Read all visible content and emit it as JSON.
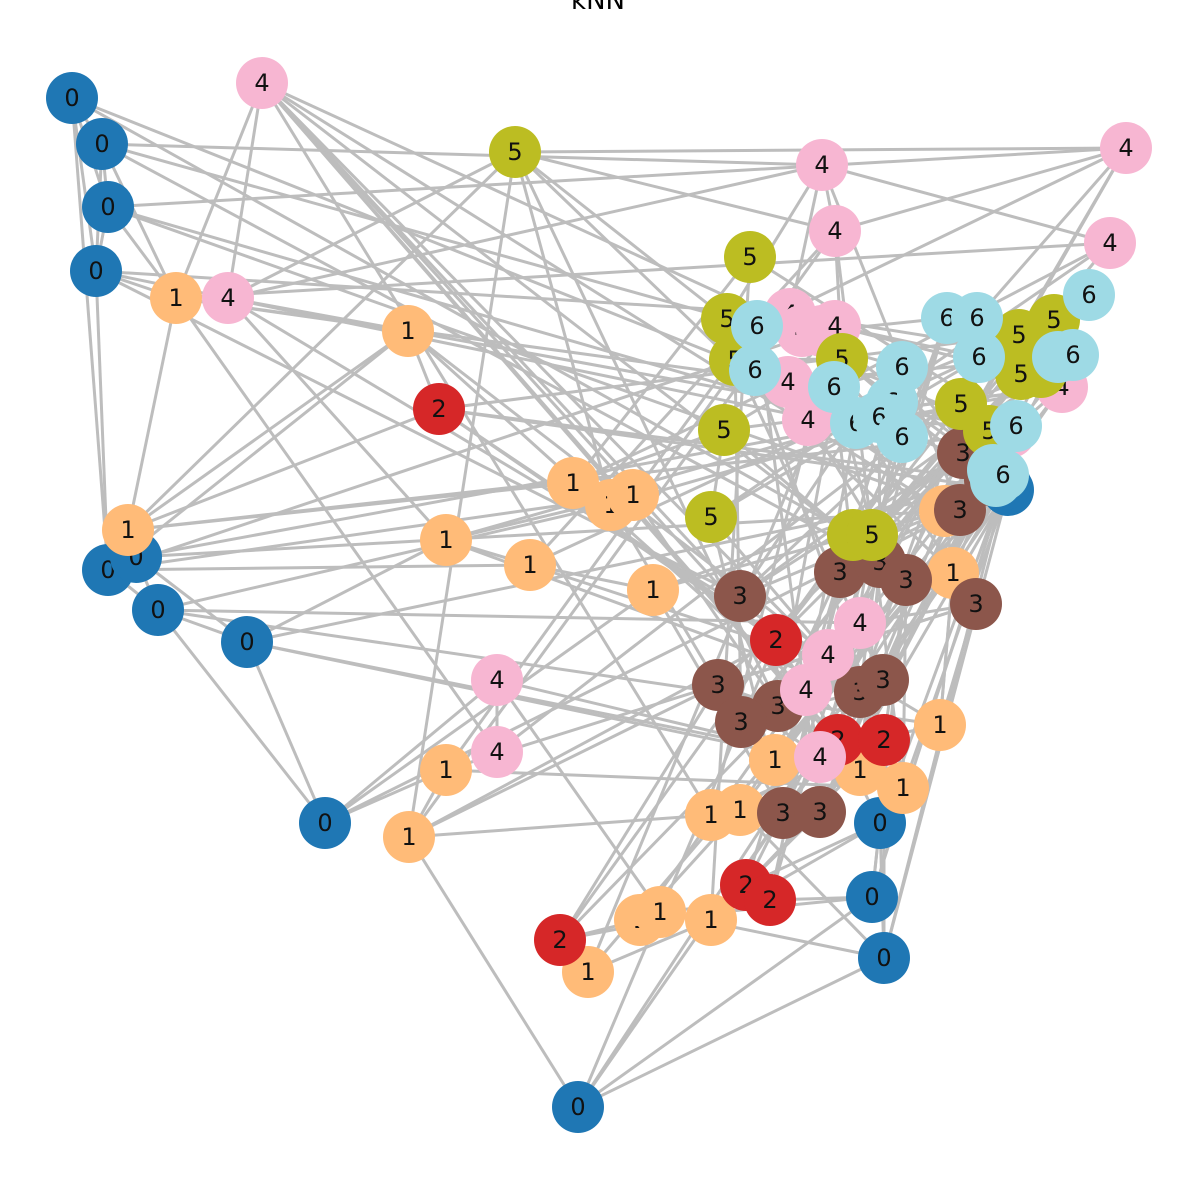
{
  "title": "kNN",
  "legend": [],
  "class_colors": {
    "0": "#1f77b4",
    "1": "#ffbb78",
    "2": "#d62728",
    "3": "#8c564b",
    "4": "#f7b6d2",
    "5": "#bcbd22",
    "6": "#9edae5"
  },
  "edge_color": "#bdbdbd",
  "nodes": [
    {
      "id": 0,
      "label": "0",
      "cls": 0
    },
    {
      "id": 1,
      "label": "0",
      "cls": 0
    },
    {
      "id": 2,
      "label": "0",
      "cls": 0
    },
    {
      "id": 3,
      "label": "0",
      "cls": 0
    },
    {
      "id": 4,
      "label": "0",
      "cls": 0
    },
    {
      "id": 5,
      "label": "0",
      "cls": 0
    },
    {
      "id": 6,
      "label": "0",
      "cls": 0
    },
    {
      "id": 7,
      "label": "0",
      "cls": 0
    },
    {
      "id": 8,
      "label": "0",
      "cls": 0
    },
    {
      "id": 9,
      "label": "0",
      "cls": 0
    },
    {
      "id": 10,
      "label": "0",
      "cls": 0
    },
    {
      "id": 11,
      "label": "0",
      "cls": 0
    },
    {
      "id": 12,
      "label": "0",
      "cls": 0
    },
    {
      "id": 13,
      "label": "0",
      "cls": 0
    },
    {
      "id": 14,
      "label": "0",
      "cls": 0
    },
    {
      "id": 15,
      "label": "1",
      "cls": 1
    },
    {
      "id": 16,
      "label": "1",
      "cls": 1
    },
    {
      "id": 17,
      "label": "1",
      "cls": 1
    },
    {
      "id": 18,
      "label": "1",
      "cls": 1
    },
    {
      "id": 19,
      "label": "1",
      "cls": 1
    },
    {
      "id": 20,
      "label": "1",
      "cls": 1
    },
    {
      "id": 21,
      "label": "1",
      "cls": 1
    },
    {
      "id": 22,
      "label": "1",
      "cls": 1
    },
    {
      "id": 23,
      "label": "1",
      "cls": 1
    },
    {
      "id": 24,
      "label": "1",
      "cls": 1
    },
    {
      "id": 25,
      "label": "1",
      "cls": 1
    },
    {
      "id": 26,
      "label": "1",
      "cls": 1
    },
    {
      "id": 27,
      "label": "1",
      "cls": 1
    },
    {
      "id": 28,
      "label": "1",
      "cls": 1
    },
    {
      "id": 29,
      "label": "1",
      "cls": 1
    },
    {
      "id": 30,
      "label": "1",
      "cls": 1
    },
    {
      "id": 31,
      "label": "1",
      "cls": 1
    },
    {
      "id": 32,
      "label": "1",
      "cls": 1
    },
    {
      "id": 33,
      "label": "1",
      "cls": 1
    },
    {
      "id": 34,
      "label": "1",
      "cls": 1
    },
    {
      "id": 35,
      "label": "1",
      "cls": 1
    },
    {
      "id": 36,
      "label": "1",
      "cls": 1
    },
    {
      "id": 37,
      "label": "1",
      "cls": 1
    },
    {
      "id": 38,
      "label": "2",
      "cls": 2
    },
    {
      "id": 39,
      "label": "2",
      "cls": 2
    },
    {
      "id": 40,
      "label": "2",
      "cls": 2
    },
    {
      "id": 41,
      "label": "2",
      "cls": 2
    },
    {
      "id": 42,
      "label": "2",
      "cls": 2
    },
    {
      "id": 43,
      "label": "2",
      "cls": 2
    },
    {
      "id": 44,
      "label": "2",
      "cls": 2
    },
    {
      "id": 45,
      "label": "3",
      "cls": 3
    },
    {
      "id": 46,
      "label": "3",
      "cls": 3
    },
    {
      "id": 47,
      "label": "3",
      "cls": 3
    },
    {
      "id": 48,
      "label": "3",
      "cls": 3
    },
    {
      "id": 49,
      "label": "3",
      "cls": 3
    },
    {
      "id": 50,
      "label": "3",
      "cls": 3
    },
    {
      "id": 51,
      "label": "3",
      "cls": 3
    },
    {
      "id": 52,
      "label": "3",
      "cls": 3
    },
    {
      "id": 53,
      "label": "3",
      "cls": 3
    },
    {
      "id": 54,
      "label": "3",
      "cls": 3
    },
    {
      "id": 55,
      "label": "3",
      "cls": 3
    },
    {
      "id": 56,
      "label": "3",
      "cls": 3
    },
    {
      "id": 57,
      "label": "3",
      "cls": 3
    },
    {
      "id": 58,
      "label": "3",
      "cls": 3
    },
    {
      "id": 59,
      "label": "3",
      "cls": 3
    },
    {
      "id": 60,
      "label": "4",
      "cls": 4
    },
    {
      "id": 61,
      "label": "4",
      "cls": 4
    },
    {
      "id": 62,
      "label": "4",
      "cls": 4
    },
    {
      "id": 63,
      "label": "4",
      "cls": 4
    },
    {
      "id": 64,
      "label": "4",
      "cls": 4
    },
    {
      "id": 65,
      "label": "4",
      "cls": 4
    },
    {
      "id": 66,
      "label": "4",
      "cls": 4
    },
    {
      "id": 67,
      "label": "4",
      "cls": 4
    },
    {
      "id": 68,
      "label": "4",
      "cls": 4
    },
    {
      "id": 69,
      "label": "4",
      "cls": 4
    },
    {
      "id": 70,
      "label": "4",
      "cls": 4
    },
    {
      "id": 71,
      "label": "4",
      "cls": 4
    },
    {
      "id": 72,
      "label": "4",
      "cls": 4
    },
    {
      "id": 73,
      "label": "4",
      "cls": 4
    },
    {
      "id": 74,
      "label": "4",
      "cls": 4
    },
    {
      "id": 75,
      "label": "4",
      "cls": 4
    },
    {
      "id": 76,
      "label": "4",
      "cls": 4
    },
    {
      "id": 77,
      "label": "4",
      "cls": 4
    },
    {
      "id": 78,
      "label": "4",
      "cls": 4
    },
    {
      "id": 79,
      "label": "4",
      "cls": 4
    },
    {
      "id": 80,
      "label": "5",
      "cls": 5
    },
    {
      "id": 81,
      "label": "5",
      "cls": 5
    },
    {
      "id": 82,
      "label": "5",
      "cls": 5
    },
    {
      "id": 83,
      "label": "5",
      "cls": 5
    },
    {
      "id": 84,
      "label": "5",
      "cls": 5
    },
    {
      "id": 85,
      "label": "5",
      "cls": 5
    },
    {
      "id": 86,
      "label": "5",
      "cls": 5
    },
    {
      "id": 87,
      "label": "5",
      "cls": 5
    },
    {
      "id": 88,
      "label": "5",
      "cls": 5
    },
    {
      "id": 89,
      "label": "5",
      "cls": 5
    },
    {
      "id": 90,
      "label": "5",
      "cls": 5
    },
    {
      "id": 91,
      "label": "5",
      "cls": 5
    },
    {
      "id": 92,
      "label": "5",
      "cls": 5
    },
    {
      "id": 93,
      "label": "5",
      "cls": 5
    },
    {
      "id": 94,
      "label": "5",
      "cls": 5
    },
    {
      "id": 95,
      "label": "6",
      "cls": 6
    },
    {
      "id": 96,
      "label": "6",
      "cls": 6
    },
    {
      "id": 97,
      "label": "6",
      "cls": 6
    },
    {
      "id": 98,
      "label": "6",
      "cls": 6
    },
    {
      "id": 99,
      "label": "6",
      "cls": 6
    },
    {
      "id": 100,
      "label": "6",
      "cls": 6
    },
    {
      "id": 101,
      "label": "6",
      "cls": 6
    },
    {
      "id": 102,
      "label": "6",
      "cls": 6
    },
    {
      "id": 103,
      "label": "6",
      "cls": 6
    },
    {
      "id": 104,
      "label": "6",
      "cls": 6
    },
    {
      "id": 105,
      "label": "6",
      "cls": 6
    },
    {
      "id": 106,
      "label": "6",
      "cls": 6
    },
    {
      "id": 107,
      "label": "6",
      "cls": 6
    },
    {
      "id": 108,
      "label": "6",
      "cls": 6
    },
    {
      "id": 109,
      "label": "6",
      "cls": 6
    },
    {
      "id": 110,
      "label": "6",
      "cls": 6
    },
    {
      "id": 111,
      "label": "6",
      "cls": 6
    },
    {
      "id": 112,
      "label": "6",
      "cls": 6
    }
  ],
  "edges": [
    [
      0,
      1
    ],
    [
      0,
      2
    ],
    [
      0,
      3
    ],
    [
      1,
      2
    ],
    [
      2,
      3
    ],
    [
      1,
      3
    ],
    [
      0,
      4
    ],
    [
      3,
      4
    ],
    [
      1,
      15
    ],
    [
      2,
      15
    ],
    [
      3,
      15
    ],
    [
      4,
      5
    ],
    [
      4,
      6
    ],
    [
      5,
      6
    ],
    [
      6,
      7
    ],
    [
      5,
      7
    ],
    [
      7,
      8
    ],
    [
      6,
      8
    ],
    [
      8,
      14
    ],
    [
      7,
      14
    ],
    [
      14,
      44
    ],
    [
      14,
      36
    ],
    [
      14,
      9
    ],
    [
      14,
      10
    ],
    [
      14,
      11
    ],
    [
      11,
      12
    ],
    [
      12,
      13
    ],
    [
      11,
      13
    ],
    [
      10,
      12
    ],
    [
      9,
      10
    ],
    [
      9,
      11
    ],
    [
      12,
      59
    ],
    [
      13,
      58
    ],
    [
      13,
      59
    ],
    [
      10,
      50
    ],
    [
      11,
      35
    ],
    [
      15,
      60
    ],
    [
      15,
      16
    ],
    [
      15,
      17
    ],
    [
      60,
      61
    ],
    [
      61,
      62
    ],
    [
      61,
      80
    ],
    [
      80,
      63
    ],
    [
      80,
      64
    ],
    [
      62,
      63
    ],
    [
      63,
      64
    ],
    [
      62,
      65
    ],
    [
      62,
      66
    ],
    [
      16,
      38
    ],
    [
      16,
      17
    ],
    [
      17,
      18
    ],
    [
      17,
      38
    ],
    [
      18,
      19
    ],
    [
      18,
      81
    ],
    [
      19,
      20
    ],
    [
      20,
      21
    ],
    [
      21,
      22
    ],
    [
      22,
      23
    ],
    [
      23,
      24
    ],
    [
      24,
      25
    ],
    [
      25,
      26
    ],
    [
      26,
      27
    ],
    [
      27,
      28
    ],
    [
      28,
      29
    ],
    [
      29,
      30
    ],
    [
      30,
      31
    ],
    [
      31,
      32
    ],
    [
      32,
      33
    ],
    [
      33,
      34
    ],
    [
      34,
      35
    ],
    [
      35,
      36
    ],
    [
      36,
      37
    ],
    [
      37,
      44
    ],
    [
      38,
      39
    ],
    [
      39,
      40
    ],
    [
      40,
      41
    ],
    [
      41,
      42
    ],
    [
      42,
      43
    ],
    [
      43,
      44
    ],
    [
      45,
      46
    ],
    [
      46,
      47
    ],
    [
      47,
      48
    ],
    [
      48,
      49
    ],
    [
      49,
      50
    ],
    [
      50,
      51
    ],
    [
      51,
      52
    ],
    [
      52,
      53
    ],
    [
      53,
      54
    ],
    [
      54,
      55
    ],
    [
      55,
      56
    ],
    [
      56,
      57
    ],
    [
      57,
      58
    ],
    [
      58,
      59
    ],
    [
      60,
      67
    ],
    [
      67,
      68
    ],
    [
      68,
      69
    ],
    [
      69,
      70
    ],
    [
      70,
      71
    ],
    [
      71,
      72
    ],
    [
      72,
      73
    ],
    [
      73,
      74
    ],
    [
      74,
      75
    ],
    [
      75,
      76
    ],
    [
      76,
      77
    ],
    [
      77,
      78
    ],
    [
      78,
      79
    ],
    [
      80,
      82
    ],
    [
      82,
      83
    ],
    [
      83,
      84
    ],
    [
      84,
      85
    ],
    [
      85,
      86
    ],
    [
      86,
      87
    ],
    [
      87,
      88
    ],
    [
      88,
      89
    ],
    [
      89,
      90
    ],
    [
      90,
      91
    ],
    [
      91,
      92
    ],
    [
      92,
      93
    ],
    [
      93,
      94
    ],
    [
      95,
      96
    ],
    [
      96,
      97
    ],
    [
      97,
      98
    ],
    [
      98,
      99
    ],
    [
      99,
      100
    ],
    [
      100,
      101
    ],
    [
      101,
      102
    ],
    [
      102,
      103
    ],
    [
      103,
      104
    ],
    [
      104,
      105
    ],
    [
      105,
      106
    ],
    [
      106,
      107
    ],
    [
      107,
      108
    ],
    [
      108,
      109
    ],
    [
      109,
      110
    ],
    [
      110,
      111
    ],
    [
      111,
      112
    ],
    [
      4,
      20
    ],
    [
      4,
      22
    ],
    [
      5,
      24
    ],
    [
      6,
      26
    ],
    [
      7,
      28
    ],
    [
      8,
      30
    ],
    [
      3,
      45
    ],
    [
      2,
      47
    ],
    [
      1,
      49
    ],
    [
      0,
      51
    ],
    [
      0,
      96
    ],
    [
      1,
      98
    ],
    [
      2,
      100
    ],
    [
      3,
      102
    ],
    [
      60,
      40
    ],
    [
      60,
      45
    ],
    [
      60,
      50
    ],
    [
      60,
      55
    ],
    [
      15,
      65
    ],
    [
      15,
      70
    ],
    [
      16,
      75
    ],
    [
      17,
      80
    ],
    [
      18,
      85
    ],
    [
      19,
      90
    ],
    [
      20,
      95
    ],
    [
      21,
      100
    ],
    [
      22,
      105
    ],
    [
      23,
      110
    ],
    [
      24,
      45
    ],
    [
      25,
      48
    ],
    [
      26,
      51
    ],
    [
      27,
      54
    ],
    [
      28,
      57
    ],
    [
      29,
      60
    ],
    [
      30,
      63
    ],
    [
      31,
      66
    ],
    [
      32,
      69
    ],
    [
      33,
      72
    ],
    [
      34,
      75
    ],
    [
      35,
      78
    ],
    [
      36,
      81
    ],
    [
      37,
      84
    ],
    [
      38,
      87
    ],
    [
      39,
      90
    ],
    [
      40,
      93
    ],
    [
      41,
      96
    ],
    [
      42,
      99
    ],
    [
      43,
      102
    ],
    [
      44,
      105
    ],
    [
      45,
      108
    ],
    [
      46,
      111
    ],
    [
      47,
      62
    ],
    [
      48,
      65
    ],
    [
      49,
      68
    ],
    [
      50,
      71
    ],
    [
      51,
      74
    ],
    [
      52,
      77
    ],
    [
      53,
      80
    ],
    [
      54,
      83
    ],
    [
      55,
      86
    ],
    [
      56,
      89
    ],
    [
      57,
      92
    ],
    [
      58,
      95
    ],
    [
      59,
      98
    ],
    [
      61,
      101
    ],
    [
      64,
      104
    ],
    [
      66,
      107
    ],
    [
      67,
      110
    ],
    [
      68,
      112
    ],
    [
      69,
      94
    ],
    [
      70,
      91
    ],
    [
      71,
      88
    ],
    [
      72,
      85
    ],
    [
      73,
      82
    ],
    [
      74,
      97
    ],
    [
      76,
      100
    ],
    [
      77,
      103
    ],
    [
      79,
      106
    ],
    [
      81,
      109
    ],
    [
      83,
      112
    ],
    [
      9,
      40
    ],
    [
      9,
      42
    ],
    [
      10,
      43
    ],
    [
      11,
      41
    ],
    [
      12,
      39
    ],
    [
      13,
      38
    ],
    [
      14,
      37
    ],
    [
      36,
      42
    ],
    [
      35,
      43
    ],
    [
      34,
      44
    ],
    [
      33,
      40
    ],
    [
      32,
      41
    ],
    [
      31,
      39
    ],
    [
      19,
      52
    ],
    [
      20,
      53
    ],
    [
      21,
      55
    ],
    [
      22,
      56
    ],
    [
      23,
      57
    ],
    [
      24,
      58
    ],
    [
      25,
      59
    ],
    [
      26,
      46
    ],
    [
      27,
      47
    ],
    [
      28,
      49
    ],
    [
      29,
      50
    ],
    [
      30,
      51
    ],
    [
      31,
      52
    ],
    [
      18,
      70
    ],
    [
      17,
      73
    ],
    [
      16,
      76
    ],
    [
      15,
      79
    ],
    [
      1,
      62
    ],
    [
      2,
      64
    ],
    [
      3,
      66
    ],
    [
      4,
      68
    ],
    [
      5,
      72
    ],
    [
      6,
      74
    ],
    [
      7,
      77
    ],
    [
      8,
      78
    ],
    [
      64,
      95
    ],
    [
      65,
      97
    ],
    [
      66,
      99
    ],
    [
      67,
      101
    ],
    [
      68,
      103
    ],
    [
      69,
      105
    ],
    [
      70,
      107
    ],
    [
      71,
      109
    ],
    [
      72,
      111
    ],
    [
      62,
      82
    ],
    [
      63,
      84
    ],
    [
      65,
      86
    ],
    [
      87,
      45
    ],
    [
      88,
      48
    ],
    [
      89,
      52
    ],
    [
      90,
      55
    ],
    [
      91,
      58
    ],
    [
      92,
      46
    ],
    [
      93,
      50
    ],
    [
      94,
      54
    ],
    [
      86,
      57
    ],
    [
      85,
      49
    ],
    [
      84,
      53
    ],
    [
      83,
      56
    ],
    [
      96,
      47
    ],
    [
      97,
      51
    ],
    [
      98,
      55
    ],
    [
      99,
      59
    ],
    [
      100,
      45
    ],
    [
      101,
      49
    ],
    [
      102,
      53
    ],
    [
      103,
      57
    ],
    [
      104,
      46
    ],
    [
      105,
      50
    ],
    [
      106,
      54
    ],
    [
      107,
      58
    ],
    [
      8,
      23
    ],
    [
      7,
      21
    ],
    [
      6,
      19
    ],
    [
      5,
      17
    ],
    [
      4,
      16
    ],
    [
      14,
      25
    ],
    [
      14,
      27
    ],
    [
      13,
      29
    ],
    [
      12,
      31
    ],
    [
      11,
      33
    ],
    [
      10,
      34
    ],
    [
      9,
      36
    ],
    [
      60,
      24
    ],
    [
      60,
      28
    ],
    [
      60,
      32
    ],
    [
      61,
      21
    ],
    [
      61,
      26
    ],
    [
      80,
      19
    ],
    [
      80,
      25
    ],
    [
      80,
      31
    ],
    [
      64,
      27
    ],
    [
      64,
      33
    ],
    [
      63,
      22
    ],
    [
      63,
      29
    ],
    [
      39,
      53
    ],
    [
      40,
      57
    ],
    [
      41,
      50
    ],
    [
      42,
      46
    ],
    [
      43,
      48
    ],
    [
      44,
      52
    ],
    [
      38,
      55
    ],
    [
      38,
      59
    ],
    [
      39,
      46
    ],
    [
      40,
      49
    ],
    [
      41,
      54
    ],
    [
      42,
      58
    ]
  ]
}
